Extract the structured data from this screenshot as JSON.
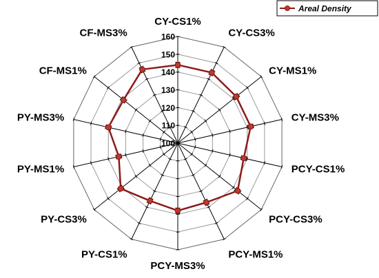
{
  "chart_data": {
    "type": "radar",
    "categories": [
      "CY-CS1%",
      "CY-CS3%",
      "CY-MS1%",
      "CY-MS3%",
      "PCY-CS1%",
      "PCY-CS3%",
      "PCY-MS1%",
      "PCY-MS3%",
      "PY-CS1%",
      "PY-CS3%",
      "PY-MS1%",
      "PY-MS3%",
      "CF-MS1%",
      "CF-MS3%"
    ],
    "series": [
      {
        "name": "Areal Density",
        "values": [
          144,
          144,
          142,
          142,
          138,
          143,
          137,
          138,
          136,
          141,
          134,
          140,
          139,
          146
        ],
        "error": 1.5
      }
    ],
    "r_axis": {
      "min": 100,
      "max": 160,
      "step": 10,
      "tick_labels": [
        "100",
        "110",
        "120",
        "130",
        "140",
        "150",
        "160"
      ]
    },
    "grid": true,
    "legend_position": "top-right",
    "colors": {
      "series": "#8b1a1a",
      "marker_fill": "#c0392b",
      "grid": "#999999",
      "spoke": "#000000"
    }
  }
}
